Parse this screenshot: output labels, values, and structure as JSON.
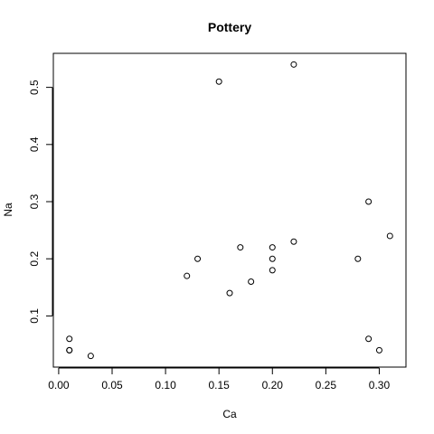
{
  "chart_data": {
    "type": "scatter",
    "title": "Pottery",
    "xlabel": "Ca",
    "ylabel": "Na",
    "xlim": [
      -0.005,
      0.325
    ],
    "ylim": [
      0.0105,
      0.5595
    ],
    "x_ticks": [
      0.0,
      0.05,
      0.1,
      0.15,
      0.2,
      0.25,
      0.3
    ],
    "x_tick_labels": [
      "0.00",
      "0.05",
      "0.10",
      "0.15",
      "0.20",
      "0.25",
      "0.30"
    ],
    "y_ticks": [
      0.1,
      0.2,
      0.3,
      0.4,
      0.5
    ],
    "y_tick_labels": [
      "0.1",
      "0.2",
      "0.3",
      "0.4",
      "0.5"
    ],
    "grid": false,
    "legend": false,
    "marker": "open-circle",
    "points": [
      {
        "x": 0.22,
        "y": 0.54
      },
      {
        "x": 0.15,
        "y": 0.51
      },
      {
        "x": 0.29,
        "y": 0.3
      },
      {
        "x": 0.31,
        "y": 0.24
      },
      {
        "x": 0.22,
        "y": 0.23
      },
      {
        "x": 0.17,
        "y": 0.22
      },
      {
        "x": 0.2,
        "y": 0.22
      },
      {
        "x": 0.13,
        "y": 0.2
      },
      {
        "x": 0.2,
        "y": 0.2
      },
      {
        "x": 0.28,
        "y": 0.2
      },
      {
        "x": 0.2,
        "y": 0.18
      },
      {
        "x": 0.12,
        "y": 0.17
      },
      {
        "x": 0.18,
        "y": 0.16
      },
      {
        "x": 0.16,
        "y": 0.14
      },
      {
        "x": 0.01,
        "y": 0.06
      },
      {
        "x": 0.29,
        "y": 0.06
      },
      {
        "x": 0.01,
        "y": 0.04
      },
      {
        "x": 0.01,
        "y": 0.04
      },
      {
        "x": 0.3,
        "y": 0.04
      },
      {
        "x": 0.03,
        "y": 0.03
      }
    ]
  }
}
